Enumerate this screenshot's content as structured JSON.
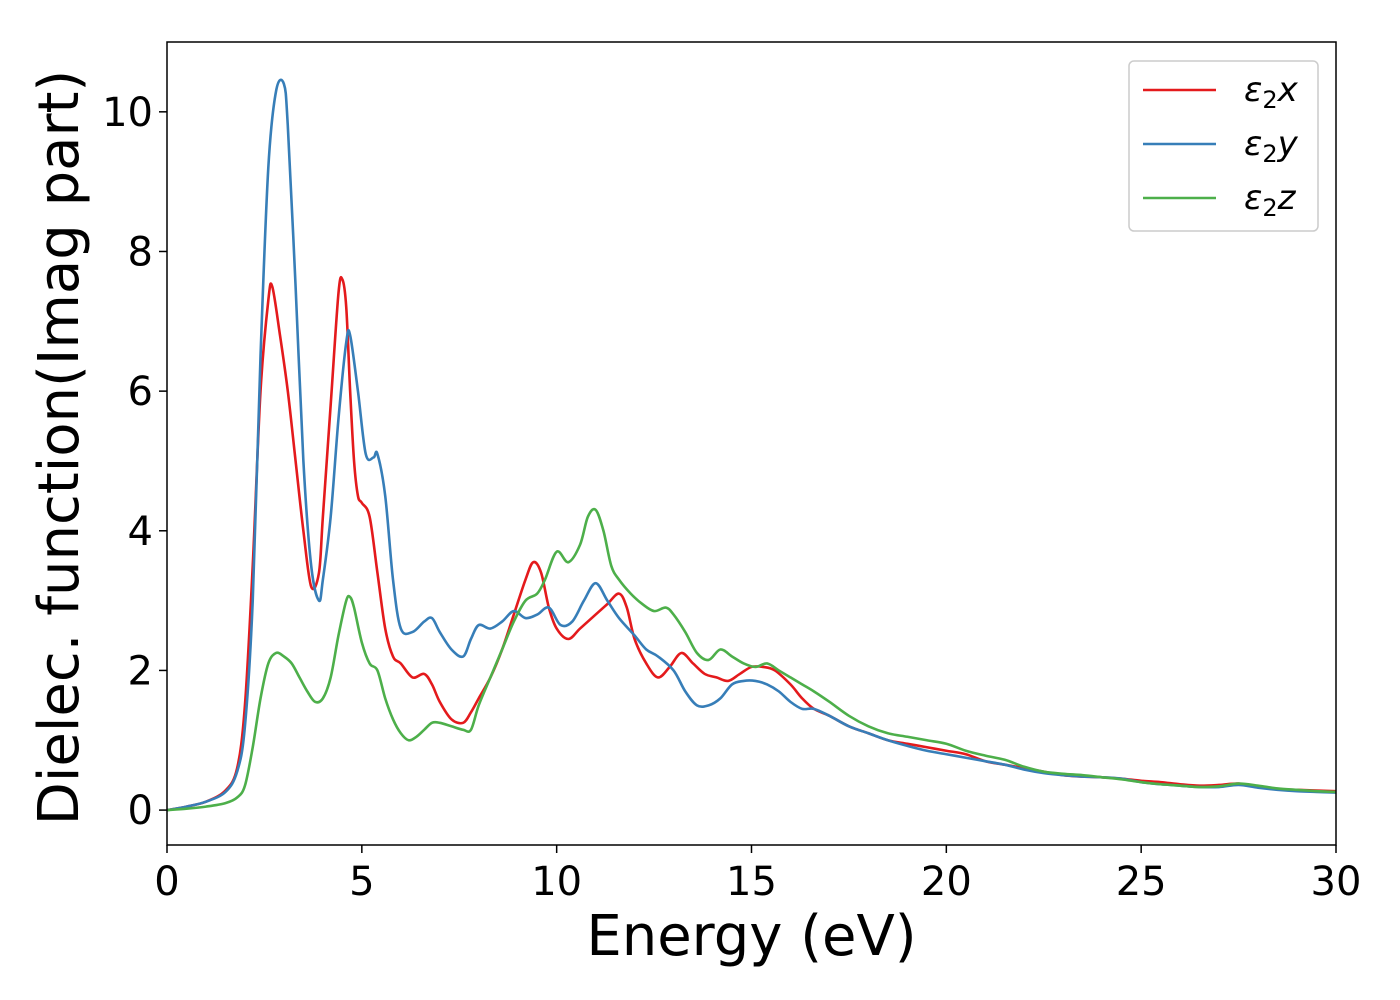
{
  "chart_data": {
    "type": "line",
    "title": "",
    "xlabel": "Energy (eV)",
    "ylabel": "Dielec. function(Imag part)",
    "xlim": [
      0,
      30
    ],
    "ylim": [
      -0.5,
      11
    ],
    "xticks": [
      0,
      5,
      10,
      15,
      20,
      25,
      30
    ],
    "yticks": [
      0,
      2,
      4,
      6,
      8,
      10
    ],
    "grid": false,
    "legend_position": "top-right",
    "series": [
      {
        "name": "ε₂x",
        "legend_main": "ε",
        "legend_sub": "2",
        "legend_suffix": "x",
        "color": "#e41a1c",
        "x": [
          0,
          0.5,
          1.0,
          1.5,
          1.8,
          2.0,
          2.2,
          2.4,
          2.6,
          2.7,
          2.9,
          3.1,
          3.3,
          3.5,
          3.7,
          3.9,
          4.0,
          4.2,
          4.4,
          4.5,
          4.6,
          4.7,
          4.8,
          4.9,
          5.0,
          5.2,
          5.4,
          5.6,
          5.8,
          6.0,
          6.3,
          6.6,
          6.8,
          7.0,
          7.3,
          7.6,
          7.8,
          8.0,
          8.3,
          8.6,
          8.9,
          9.2,
          9.4,
          9.6,
          9.8,
          10.0,
          10.3,
          10.6,
          11.0,
          11.3,
          11.6,
          11.8,
          12.0,
          12.3,
          12.6,
          12.9,
          13.2,
          13.5,
          13.8,
          14.1,
          14.4,
          14.7,
          15.0,
          15.3,
          15.6,
          16.0,
          16.3,
          16.6,
          17.0,
          17.5,
          18.0,
          18.5,
          19.0,
          19.5,
          20.0,
          20.5,
          21.0,
          21.5,
          22.0,
          22.5,
          23.0,
          23.5,
          24.0,
          24.5,
          25.0,
          25.5,
          26.0,
          26.5,
          27.0,
          27.5,
          28.0,
          28.5,
          29.0,
          29.5,
          30.0
        ],
        "y": [
          0,
          0.05,
          0.12,
          0.28,
          0.6,
          1.5,
          3.5,
          6.0,
          7.3,
          7.5,
          6.8,
          6.0,
          5.0,
          4.0,
          3.2,
          3.4,
          4.2,
          5.8,
          7.4,
          7.6,
          7.2,
          6.0,
          5.0,
          4.5,
          4.4,
          4.2,
          3.4,
          2.6,
          2.2,
          2.1,
          1.9,
          1.95,
          1.8,
          1.55,
          1.3,
          1.25,
          1.4,
          1.6,
          1.9,
          2.3,
          2.8,
          3.3,
          3.55,
          3.4,
          2.9,
          2.6,
          2.45,
          2.6,
          2.8,
          2.95,
          3.1,
          2.9,
          2.45,
          2.1,
          1.9,
          2.05,
          2.25,
          2.1,
          1.95,
          1.9,
          1.85,
          1.95,
          2.05,
          2.05,
          2.0,
          1.8,
          1.6,
          1.45,
          1.35,
          1.2,
          1.1,
          1.0,
          0.95,
          0.9,
          0.85,
          0.8,
          0.7,
          0.65,
          0.6,
          0.55,
          0.5,
          0.48,
          0.47,
          0.45,
          0.42,
          0.4,
          0.37,
          0.35,
          0.36,
          0.38,
          0.33,
          0.3,
          0.29,
          0.28,
          0.27
        ]
      },
      {
        "name": "ε₂y",
        "legend_main": "ε",
        "legend_sub": "2",
        "legend_suffix": "y",
        "color": "#377eb8",
        "x": [
          0,
          0.5,
          1.0,
          1.5,
          1.8,
          2.0,
          2.2,
          2.4,
          2.6,
          2.8,
          3.0,
          3.1,
          3.3,
          3.5,
          3.7,
          3.9,
          4.0,
          4.2,
          4.4,
          4.6,
          4.7,
          4.9,
          5.1,
          5.3,
          5.4,
          5.6,
          5.8,
          6.0,
          6.3,
          6.6,
          6.8,
          7.0,
          7.3,
          7.6,
          7.8,
          8.0,
          8.3,
          8.6,
          8.9,
          9.2,
          9.5,
          9.8,
          10.1,
          10.4,
          10.7,
          11.0,
          11.3,
          11.6,
          12.0,
          12.3,
          12.6,
          13.0,
          13.3,
          13.6,
          13.9,
          14.2,
          14.5,
          14.8,
          15.1,
          15.4,
          15.7,
          16.0,
          16.3,
          16.6,
          17.0,
          17.5,
          18.0,
          18.5,
          19.0,
          19.5,
          20.0,
          20.5,
          21.0,
          21.5,
          22.0,
          22.5,
          23.0,
          23.5,
          24.0,
          24.5,
          25.0,
          25.5,
          26.0,
          26.5,
          27.0,
          27.5,
          28.0,
          28.5,
          29.0,
          29.5,
          30.0
        ],
        "y": [
          0,
          0.05,
          0.12,
          0.26,
          0.55,
          1.2,
          3.0,
          6.5,
          9.2,
          10.3,
          10.4,
          9.8,
          7.5,
          5.0,
          3.5,
          3.0,
          3.3,
          4.2,
          5.6,
          6.7,
          6.8,
          6.0,
          5.1,
          5.05,
          5.1,
          4.5,
          3.3,
          2.6,
          2.55,
          2.7,
          2.75,
          2.55,
          2.3,
          2.2,
          2.45,
          2.65,
          2.6,
          2.7,
          2.85,
          2.75,
          2.8,
          2.9,
          2.65,
          2.7,
          3.0,
          3.25,
          3.0,
          2.75,
          2.5,
          2.3,
          2.2,
          2.0,
          1.7,
          1.5,
          1.5,
          1.6,
          1.8,
          1.85,
          1.85,
          1.8,
          1.7,
          1.55,
          1.45,
          1.45,
          1.35,
          1.2,
          1.1,
          1.0,
          0.92,
          0.85,
          0.8,
          0.75,
          0.7,
          0.65,
          0.58,
          0.53,
          0.5,
          0.48,
          0.47,
          0.45,
          0.4,
          0.37,
          0.35,
          0.33,
          0.33,
          0.36,
          0.32,
          0.29,
          0.27,
          0.26,
          0.25
        ]
      },
      {
        "name": "ε₂z",
        "legend_main": "ε",
        "legend_sub": "2",
        "legend_suffix": "z",
        "color": "#4daf4a",
        "x": [
          0,
          0.5,
          1.0,
          1.5,
          1.8,
          2.0,
          2.2,
          2.4,
          2.6,
          2.8,
          3.0,
          3.2,
          3.4,
          3.6,
          3.8,
          4.0,
          4.2,
          4.4,
          4.6,
          4.7,
          4.8,
          5.0,
          5.2,
          5.4,
          5.6,
          5.8,
          6.0,
          6.2,
          6.4,
          6.6,
          6.8,
          7.0,
          7.3,
          7.6,
          7.8,
          8.0,
          8.3,
          8.6,
          8.9,
          9.2,
          9.5,
          9.7,
          10.0,
          10.3,
          10.6,
          10.8,
          11.0,
          11.2,
          11.4,
          11.6,
          11.9,
          12.2,
          12.5,
          12.8,
          13.0,
          13.3,
          13.6,
          13.9,
          14.2,
          14.5,
          14.8,
          15.1,
          15.4,
          15.7,
          16.0,
          16.3,
          16.6,
          17.0,
          17.5,
          18.0,
          18.5,
          19.0,
          19.5,
          20.0,
          20.5,
          21.0,
          21.5,
          22.0,
          22.5,
          23.0,
          23.5,
          24.0,
          24.5,
          25.0,
          25.5,
          26.0,
          26.5,
          27.0,
          27.5,
          28.0,
          28.5,
          29.0,
          29.5,
          30.0
        ],
        "y": [
          0,
          0.02,
          0.05,
          0.1,
          0.18,
          0.35,
          0.9,
          1.6,
          2.1,
          2.25,
          2.2,
          2.1,
          1.9,
          1.7,
          1.55,
          1.6,
          1.9,
          2.5,
          3.0,
          3.05,
          2.9,
          2.4,
          2.1,
          2.0,
          1.6,
          1.3,
          1.1,
          1.0,
          1.05,
          1.15,
          1.25,
          1.25,
          1.2,
          1.15,
          1.15,
          1.5,
          1.9,
          2.3,
          2.7,
          3.0,
          3.1,
          3.3,
          3.7,
          3.55,
          3.8,
          4.2,
          4.3,
          4.0,
          3.5,
          3.3,
          3.1,
          2.95,
          2.85,
          2.9,
          2.8,
          2.55,
          2.25,
          2.15,
          2.3,
          2.2,
          2.1,
          2.05,
          2.1,
          2.0,
          1.9,
          1.8,
          1.7,
          1.55,
          1.35,
          1.2,
          1.1,
          1.05,
          1.0,
          0.95,
          0.85,
          0.78,
          0.72,
          0.62,
          0.55,
          0.52,
          0.5,
          0.47,
          0.44,
          0.4,
          0.37,
          0.35,
          0.33,
          0.34,
          0.38,
          0.35,
          0.31,
          0.29,
          0.27,
          0.26
        ]
      }
    ]
  }
}
